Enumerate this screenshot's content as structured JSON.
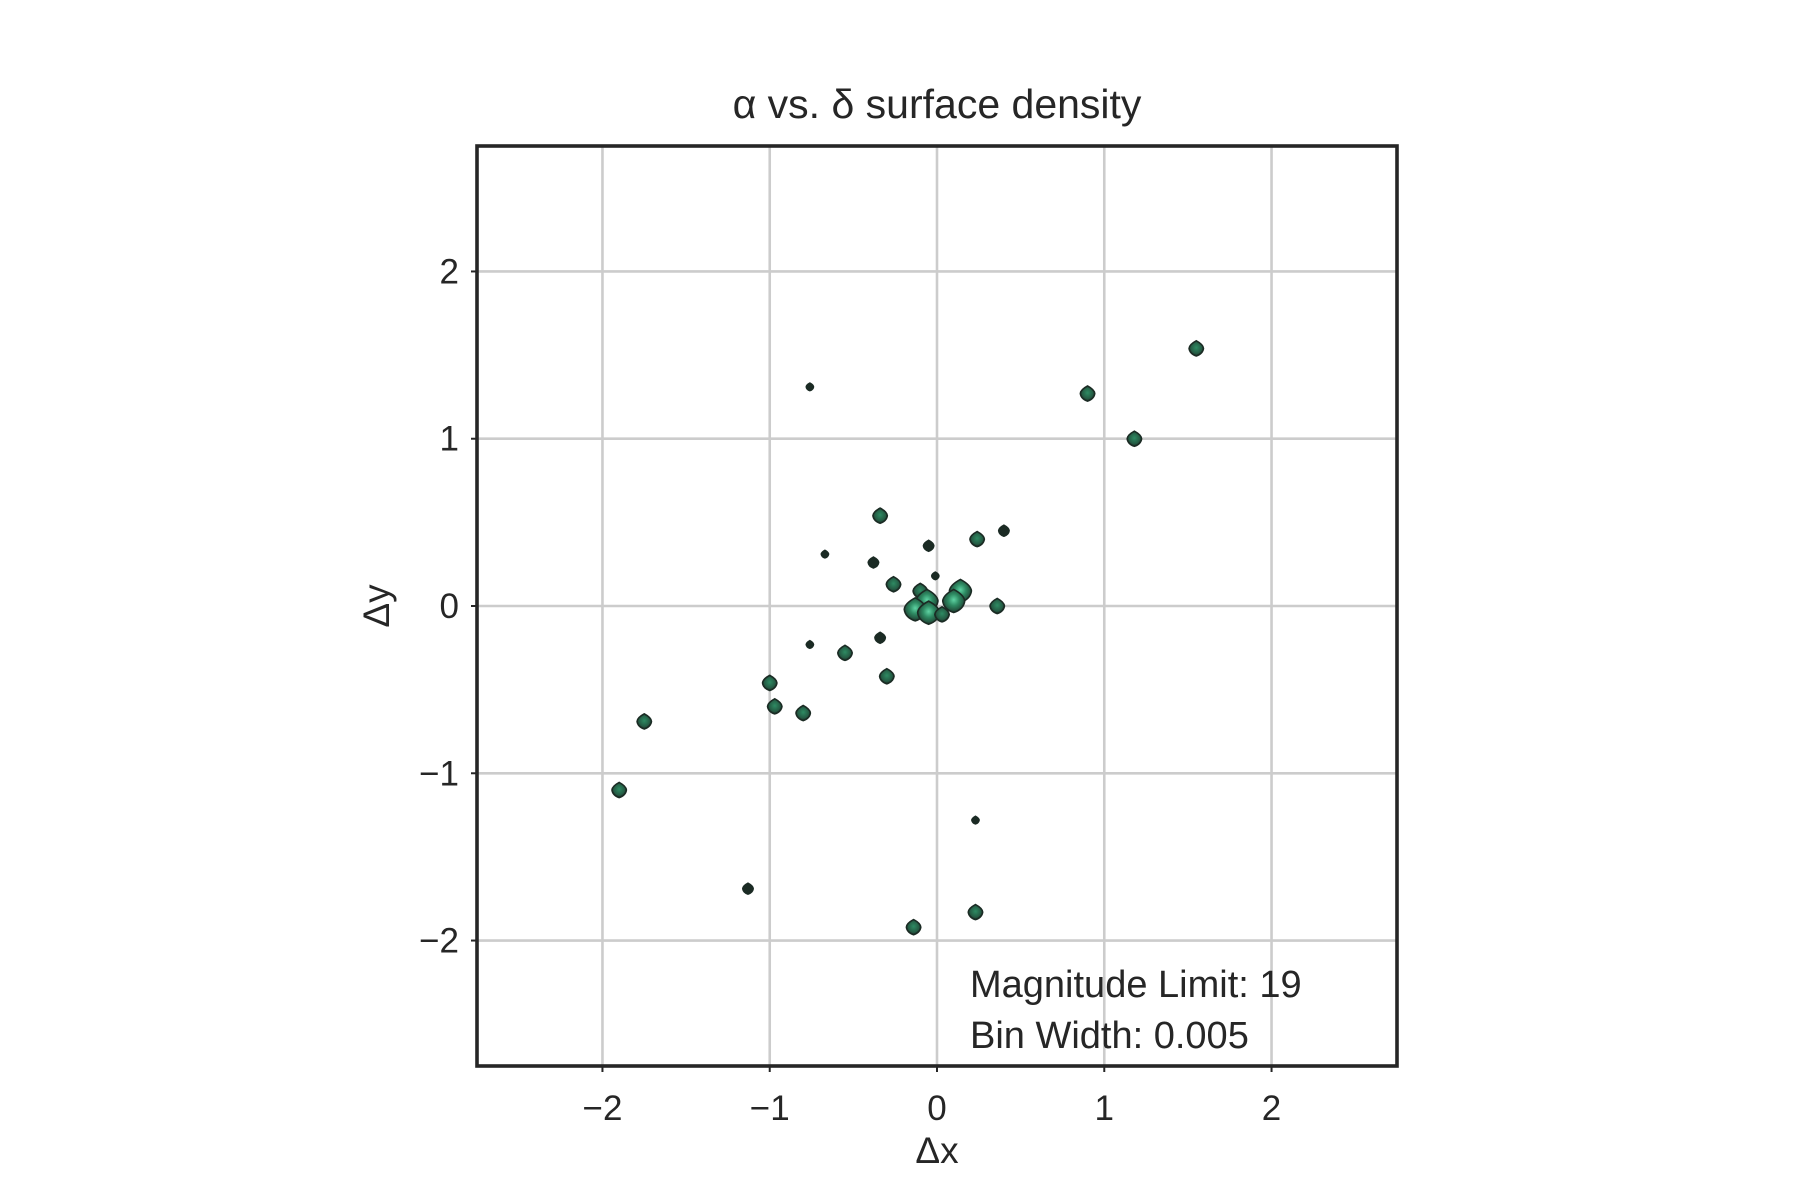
{
  "chart_data": {
    "type": "heatmap",
    "title": "α vs. δ surface density",
    "xlabel": "Δx",
    "ylabel": "Δy",
    "xlim": [
      -2.75,
      2.75
    ],
    "ylim": [
      -2.75,
      2.75
    ],
    "xticks": [
      -2,
      -1,
      0,
      1,
      2
    ],
    "yticks": [
      -2,
      -1,
      0,
      1,
      2
    ],
    "xtick_labels": [
      "−2",
      "−1",
      "0",
      "1",
      "2"
    ],
    "ytick_labels": [
      "−2",
      "−1",
      "0",
      "1",
      "2"
    ],
    "grid": true,
    "colormap": [
      "#1b2b24",
      "#245a43",
      "#2e8b63",
      "#5fd3a3"
    ],
    "annotations": [
      "Magnitude Limit: 19",
      "Bin Width: 0.005"
    ],
    "points": [
      {
        "x": 1.55,
        "y": 1.54,
        "size": "medium"
      },
      {
        "x": 0.9,
        "y": 1.27,
        "size": "medium"
      },
      {
        "x": 1.18,
        "y": 1.0,
        "size": "medium"
      },
      {
        "x": -0.76,
        "y": 1.31,
        "size": "tiny"
      },
      {
        "x": -0.34,
        "y": 0.54,
        "size": "medium"
      },
      {
        "x": 0.4,
        "y": 0.45,
        "size": "small"
      },
      {
        "x": 0.24,
        "y": 0.4,
        "size": "medium"
      },
      {
        "x": -0.05,
        "y": 0.36,
        "size": "small"
      },
      {
        "x": -0.67,
        "y": 0.31,
        "size": "tiny"
      },
      {
        "x": -0.38,
        "y": 0.26,
        "size": "small"
      },
      {
        "x": -0.01,
        "y": 0.18,
        "size": "tiny"
      },
      {
        "x": -0.26,
        "y": 0.13,
        "size": "medium"
      },
      {
        "x": -0.1,
        "y": 0.09,
        "size": "medium"
      },
      {
        "x": 0.14,
        "y": 0.09,
        "size": "large"
      },
      {
        "x": 0.1,
        "y": 0.03,
        "size": "large"
      },
      {
        "x": -0.06,
        "y": 0.03,
        "size": "large"
      },
      {
        "x": -0.13,
        "y": -0.02,
        "size": "large"
      },
      {
        "x": -0.05,
        "y": -0.04,
        "size": "large"
      },
      {
        "x": 0.03,
        "y": -0.05,
        "size": "medium"
      },
      {
        "x": 0.36,
        "y": 0.0,
        "size": "medium"
      },
      {
        "x": -0.34,
        "y": -0.19,
        "size": "small"
      },
      {
        "x": -0.55,
        "y": -0.28,
        "size": "medium"
      },
      {
        "x": -0.76,
        "y": -0.23,
        "size": "tiny"
      },
      {
        "x": -0.3,
        "y": -0.42,
        "size": "medium"
      },
      {
        "x": -1.0,
        "y": -0.46,
        "size": "medium"
      },
      {
        "x": -0.97,
        "y": -0.6,
        "size": "medium"
      },
      {
        "x": -0.8,
        "y": -0.64,
        "size": "medium"
      },
      {
        "x": -1.75,
        "y": -0.69,
        "size": "medium"
      },
      {
        "x": -1.9,
        "y": -1.1,
        "size": "medium"
      },
      {
        "x": 0.23,
        "y": -1.28,
        "size": "tiny"
      },
      {
        "x": -1.13,
        "y": -1.69,
        "size": "small"
      },
      {
        "x": 0.23,
        "y": -1.83,
        "size": "medium"
      },
      {
        "x": -0.14,
        "y": -1.92,
        "size": "medium"
      }
    ]
  }
}
